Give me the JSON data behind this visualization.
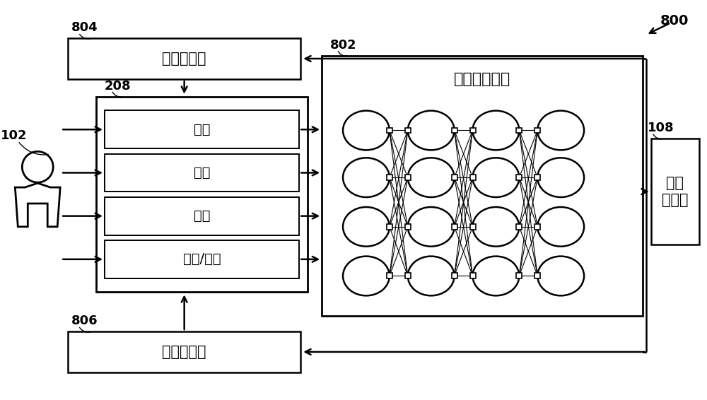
{
  "bg_color": "#ffffff",
  "line_color": "#000000",
  "figure_label": "800",
  "ann_802": "802",
  "ann_804": "804",
  "ann_806": "806",
  "ann_208": "208",
  "ann_102": "102",
  "ann_108": "108",
  "label_good": "良好指示符",
  "label_bad": "不良指示符",
  "label_ann": "人工神经网络",
  "label_activity": "活动",
  "label_component": "组件",
  "label_position": "位置",
  "label_datetime": "日期/时间",
  "label_user_context": "用户\n上下文",
  "font_size_main": 15,
  "font_size_label": 14,
  "font_size_ann": 13,
  "font_size_small": 11
}
